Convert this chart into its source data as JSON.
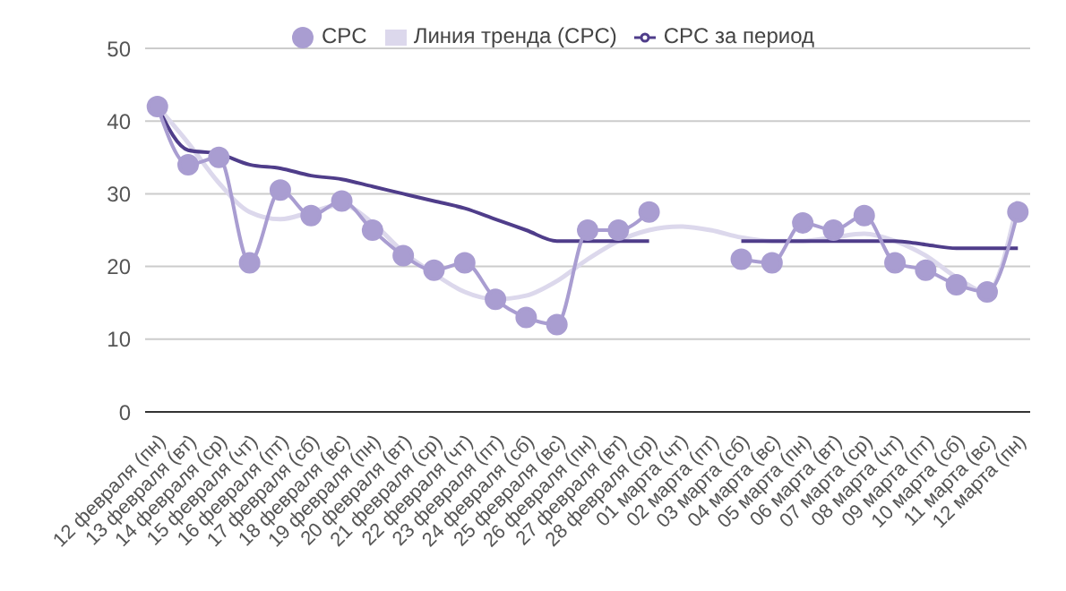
{
  "chart_data": {
    "type": "line",
    "categories": [
      "12 февраля (пн)",
      "13 февраля (вт)",
      "14 февраля (ср)",
      "15 февраля (чт)",
      "16 февраля (пт)",
      "17 февраля (сб)",
      "18 февраля (вс)",
      "19 февраля (пн)",
      "20 февраля (вт)",
      "21 февраля (ср)",
      "22 февраля (чт)",
      "23 февраля (пт)",
      "24 февраля (сб)",
      "25 февраля (вс)",
      "26 февраля (пн)",
      "27 февраля (вт)",
      "28 февраля (ср)",
      "01 марта (чт)",
      "02 марта (пт)",
      "03 марта (сб)",
      "04 марта (вс)",
      "05 марта (пн)",
      "06 марта (вт)",
      "07 марта (ср)",
      "08 марта (чт)",
      "09 марта (пт)",
      "10 марта (сб)",
      "11 марта (вс)",
      "12 марта (пн)"
    ],
    "series": [
      {
        "name": "CPC",
        "color": "#a99dd1",
        "marker": "circle",
        "values": [
          42,
          34,
          35,
          20.5,
          30.5,
          27,
          29,
          25,
          21.5,
          19.5,
          20.5,
          15.5,
          13,
          12,
          25,
          25,
          27.5,
          null,
          null,
          21,
          20.5,
          26,
          25,
          27,
          20.5,
          19.5,
          17.5,
          16.5,
          27.5
        ]
      },
      {
        "name": "Линия тренда (CPC)",
        "color": "#dcd8ec",
        "marker": "none",
        "values": [
          42,
          37,
          31.5,
          27.5,
          26.5,
          27.5,
          28.5,
          26,
          22,
          19,
          16.5,
          15.5,
          16,
          18,
          21,
          23.5,
          25,
          25.5,
          25,
          24,
          23.5,
          23.5,
          24,
          24.5,
          23.5,
          21.5,
          18.5,
          16.5,
          29
        ]
      },
      {
        "name": "CPC за период",
        "color": "#4f3d8a",
        "marker": "none",
        "values": [
          42,
          36,
          35.5,
          34,
          33.5,
          32.5,
          32,
          31,
          30,
          29,
          28,
          26.5,
          25,
          23.5,
          23.5,
          23.5,
          23.5,
          null,
          null,
          23.5,
          23.5,
          23.5,
          23.5,
          23.5,
          23.5,
          23,
          22.5,
          22.5,
          22.5
        ]
      }
    ],
    "ylim": [
      0,
      50
    ],
    "yticks": [
      0,
      10,
      20,
      30,
      40,
      50
    ],
    "grid": "y",
    "legend": "top",
    "line_style": "solid"
  }
}
